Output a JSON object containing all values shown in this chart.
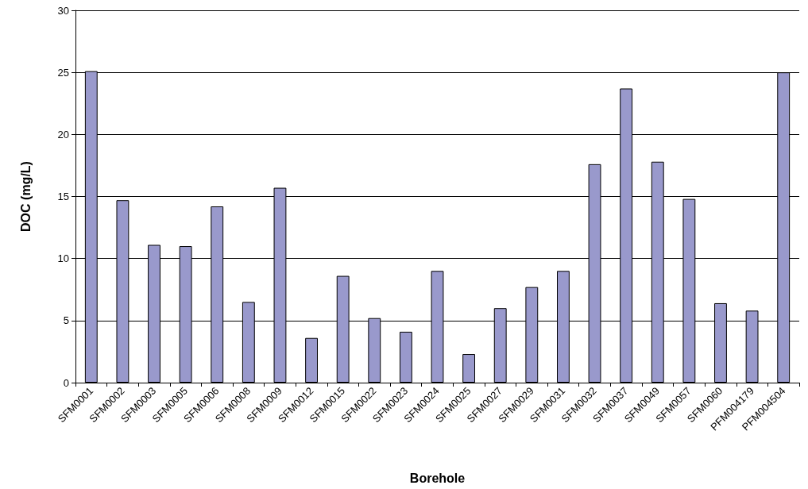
{
  "chart_data": {
    "type": "bar",
    "xlabel": "Borehole",
    "ylabel": "DOC (mg/L)",
    "categories": [
      "SFM0001",
      "SFM0002",
      "SFM0003",
      "SFM0005",
      "SFM0006",
      "SFM0008",
      "SFM0009",
      "SFM0012",
      "SFM0015",
      "SFM0022",
      "SFM0023",
      "SFM0024",
      "SFM0025",
      "SFM0027",
      "SFM0029",
      "SFM0031",
      "SFM0032",
      "SFM0037",
      "SFM0049",
      "SFM0057",
      "SFM0060",
      "PFM004179",
      "PFM004504"
    ],
    "values": [
      25.1,
      14.7,
      11.1,
      11.0,
      14.2,
      6.5,
      15.7,
      3.6,
      8.6,
      5.2,
      4.1,
      9.0,
      2.3,
      6.0,
      7.7,
      9.0,
      17.6,
      23.7,
      17.8,
      14.8,
      6.4,
      5.8,
      25.0
    ],
    "color": "#9999cc",
    "ylim": [
      0,
      30
    ],
    "yticks": [
      0,
      5,
      10,
      15,
      20,
      25,
      30
    ],
    "grid": "y"
  }
}
